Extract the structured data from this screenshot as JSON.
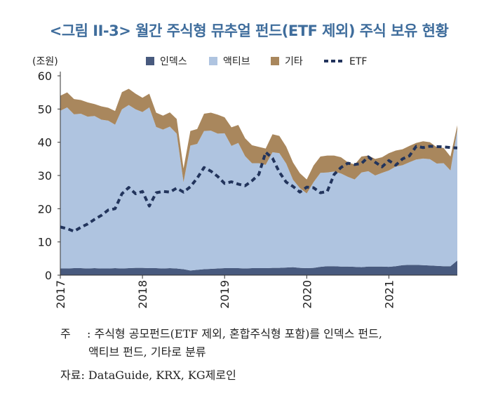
{
  "title": "<그림 II-3> 월간 주식형 뮤추얼 펀드(ETF 제외) 주식 보유 현황",
  "notes": {
    "line1_label": "주",
    "line1_text": ": 주식형 공모펀드(ETF 제외, 혼합주식형 포함)를 인덱스 펀드,",
    "line2_text": "액티브 펀드, 기타로 분류",
    "source": "자료: DataGuide, KRX, KG제로인"
  },
  "chart_data": {
    "type": "area",
    "title": "<그림 II-3> 월간 주식형 뮤추얼 펀드(ETF 제외) 주식 보유 현황",
    "ylabel": "(조원)",
    "xlabel": "",
    "ylim": [
      0,
      60
    ],
    "yticks": [
      0,
      10,
      20,
      30,
      40,
      50,
      60
    ],
    "x_tick_labels": [
      "2017",
      "2018",
      "2019",
      "2020",
      "2021"
    ],
    "x_tick_index": [
      0,
      12,
      24,
      36,
      48
    ],
    "grid": false,
    "legend_position": "top-center",
    "x": [
      "2017-01",
      "2017-02",
      "2017-03",
      "2017-04",
      "2017-05",
      "2017-06",
      "2017-07",
      "2017-08",
      "2017-09",
      "2017-10",
      "2017-11",
      "2017-12",
      "2018-01",
      "2018-02",
      "2018-03",
      "2018-04",
      "2018-05",
      "2018-06",
      "2018-07",
      "2018-08",
      "2018-09",
      "2018-10",
      "2018-11",
      "2018-12",
      "2019-01",
      "2019-02",
      "2019-03",
      "2019-04",
      "2019-05",
      "2019-06",
      "2019-07",
      "2019-08",
      "2019-09",
      "2019-10",
      "2019-11",
      "2019-12",
      "2020-01",
      "2020-02",
      "2020-03",
      "2020-04",
      "2020-05",
      "2020-06",
      "2020-07",
      "2020-08",
      "2020-09",
      "2020-10",
      "2020-11",
      "2020-12",
      "2021-01",
      "2021-02",
      "2021-03",
      "2021-04",
      "2021-05",
      "2021-06",
      "2021-07",
      "2021-08",
      "2021-09",
      "2021-10",
      "2021-11"
    ],
    "series": [
      {
        "name": "인덱스",
        "kind": "stacked-area",
        "color": "#485a7e",
        "values": [
          2.0,
          2.0,
          2.1,
          2.1,
          2.0,
          2.1,
          2.0,
          2.0,
          2.1,
          2.0,
          2.1,
          2.2,
          2.2,
          2.1,
          2.1,
          2.0,
          2.1,
          2.0,
          1.8,
          1.4,
          1.6,
          1.8,
          1.9,
          2.0,
          2.1,
          2.1,
          2.1,
          2.0,
          2.1,
          2.1,
          2.1,
          2.2,
          2.2,
          2.3,
          2.4,
          2.2,
          2.1,
          2.2,
          2.5,
          2.7,
          2.7,
          2.6,
          2.6,
          2.5,
          2.4,
          2.6,
          2.6,
          2.6,
          2.5,
          2.7,
          3.0,
          3.1,
          3.1,
          3.0,
          2.9,
          2.8,
          2.7,
          2.7,
          4.4
        ]
      },
      {
        "name": "액티브",
        "kind": "stacked-area",
        "color": "#afc4e0",
        "values": [
          47.5,
          48.5,
          46.3,
          46.5,
          45.7,
          45.8,
          44.8,
          44.5,
          43.2,
          47.9,
          49.1,
          47.7,
          46.9,
          48.4,
          42.5,
          41.8,
          42.6,
          40.6,
          26.2,
          37.6,
          37.9,
          41.6,
          41.6,
          40.6,
          40.6,
          36.8,
          37.7,
          33.8,
          31.6,
          31.6,
          31.1,
          34.8,
          34.5,
          31.3,
          26.3,
          24.0,
          22.5,
          25.8,
          28.3,
          28.2,
          28.5,
          28.0,
          27.0,
          26.3,
          28.5,
          28.7,
          27.4,
          28.2,
          29.0,
          30.0,
          30.1,
          30.9,
          31.7,
          32.1,
          32.0,
          30.8,
          31.0,
          28.8,
          39.4
        ]
      },
      {
        "name": "기타",
        "kind": "stacked-area",
        "color": "#a9875d",
        "values": [
          4.5,
          4.5,
          4.6,
          4.1,
          4.3,
          3.6,
          4.0,
          3.9,
          4.1,
          5.2,
          4.9,
          4.7,
          4.3,
          4.1,
          4.3,
          4.2,
          4.3,
          4.4,
          4.1,
          4.4,
          4.5,
          5.2,
          5.4,
          5.7,
          4.8,
          5.6,
          5.4,
          5.4,
          5.4,
          4.9,
          4.9,
          5.4,
          5.2,
          5.1,
          5.2,
          4.5,
          4.2,
          5.0,
          4.9,
          5.1,
          4.8,
          4.9,
          4.4,
          4.5,
          4.8,
          4.7,
          5.0,
          4.7,
          5.2,
          4.8,
          4.8,
          4.9,
          5.0,
          5.2,
          5.1,
          4.9,
          4.6,
          4.2,
          1.3
        ]
      },
      {
        "name": "ETF",
        "kind": "line",
        "color": "#22345c",
        "style": "dashed",
        "values": [
          14.5,
          14.0,
          13.2,
          14.4,
          15.4,
          16.8,
          18.0,
          19.6,
          20.0,
          24.5,
          26.4,
          24.5,
          25.2,
          20.8,
          24.8,
          25.2,
          25.0,
          26.2,
          25.0,
          26.6,
          29.2,
          32.4,
          31.3,
          29.7,
          27.6,
          28.1,
          27.4,
          26.9,
          28.4,
          30.3,
          37.0,
          35.2,
          31.0,
          28.0,
          26.7,
          25.0,
          26.5,
          26.3,
          24.8,
          25.2,
          30.3,
          32.4,
          33.7,
          33.3,
          33.6,
          35.6,
          34.0,
          32.6,
          34.5,
          33.1,
          35.0,
          35.9,
          38.8,
          38.4,
          38.8,
          38.7,
          38.6,
          38.4,
          38.3
        ]
      }
    ]
  }
}
